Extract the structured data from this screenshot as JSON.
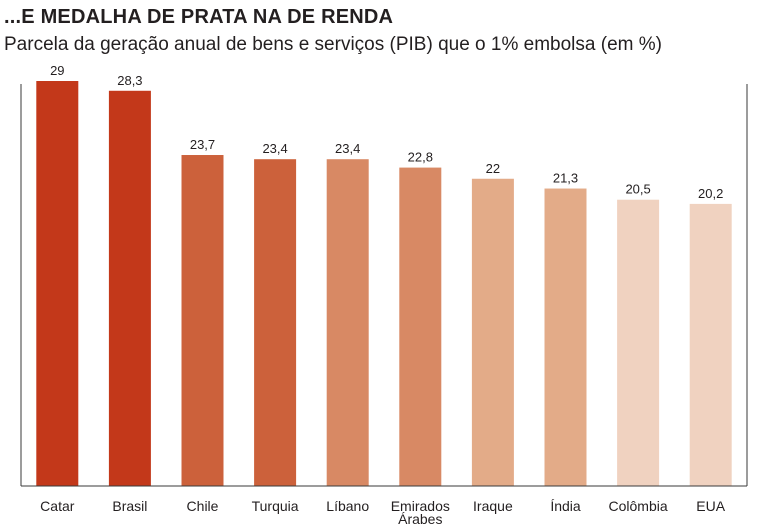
{
  "title": "...E MEDALHA DE PRATA NA DE RENDA",
  "subtitle": "Parcela da geração anual de bens e serviços (PIB) que o 1% embolsa (em %)",
  "chart_data": {
    "type": "bar",
    "categories": [
      "Catar",
      "Brasil",
      "Chile",
      "Turquia",
      "Líbano",
      "Emirados Árabes",
      "Iraque",
      "Índia",
      "Colômbia",
      "EUA"
    ],
    "category_lines": [
      [
        "Catar"
      ],
      [
        "Brasil"
      ],
      [
        "Chile"
      ],
      [
        "Turquia"
      ],
      [
        "Líbano"
      ],
      [
        "Emirados",
        "Árabes"
      ],
      [
        "Iraque"
      ],
      [
        "Índia"
      ],
      [
        "Colômbia"
      ],
      [
        "EUA"
      ]
    ],
    "values": [
      29,
      28.3,
      23.7,
      23.4,
      23.4,
      22.8,
      22,
      21.3,
      20.5,
      20.2
    ],
    "value_labels": [
      "29",
      "28,3",
      "23,7",
      "23,4",
      "23,4",
      "22,8",
      "22",
      "21,3",
      "20,5",
      "20,2"
    ],
    "colors": [
      "#c3381a",
      "#c3381a",
      "#cc613b",
      "#cc613b",
      "#d88964",
      "#d88964",
      "#e3ab88",
      "#e3ab88",
      "#f0d2c0",
      "#f0d2c0"
    ],
    "ylim": [
      0,
      29
    ],
    "grid": false,
    "legend": "none"
  }
}
